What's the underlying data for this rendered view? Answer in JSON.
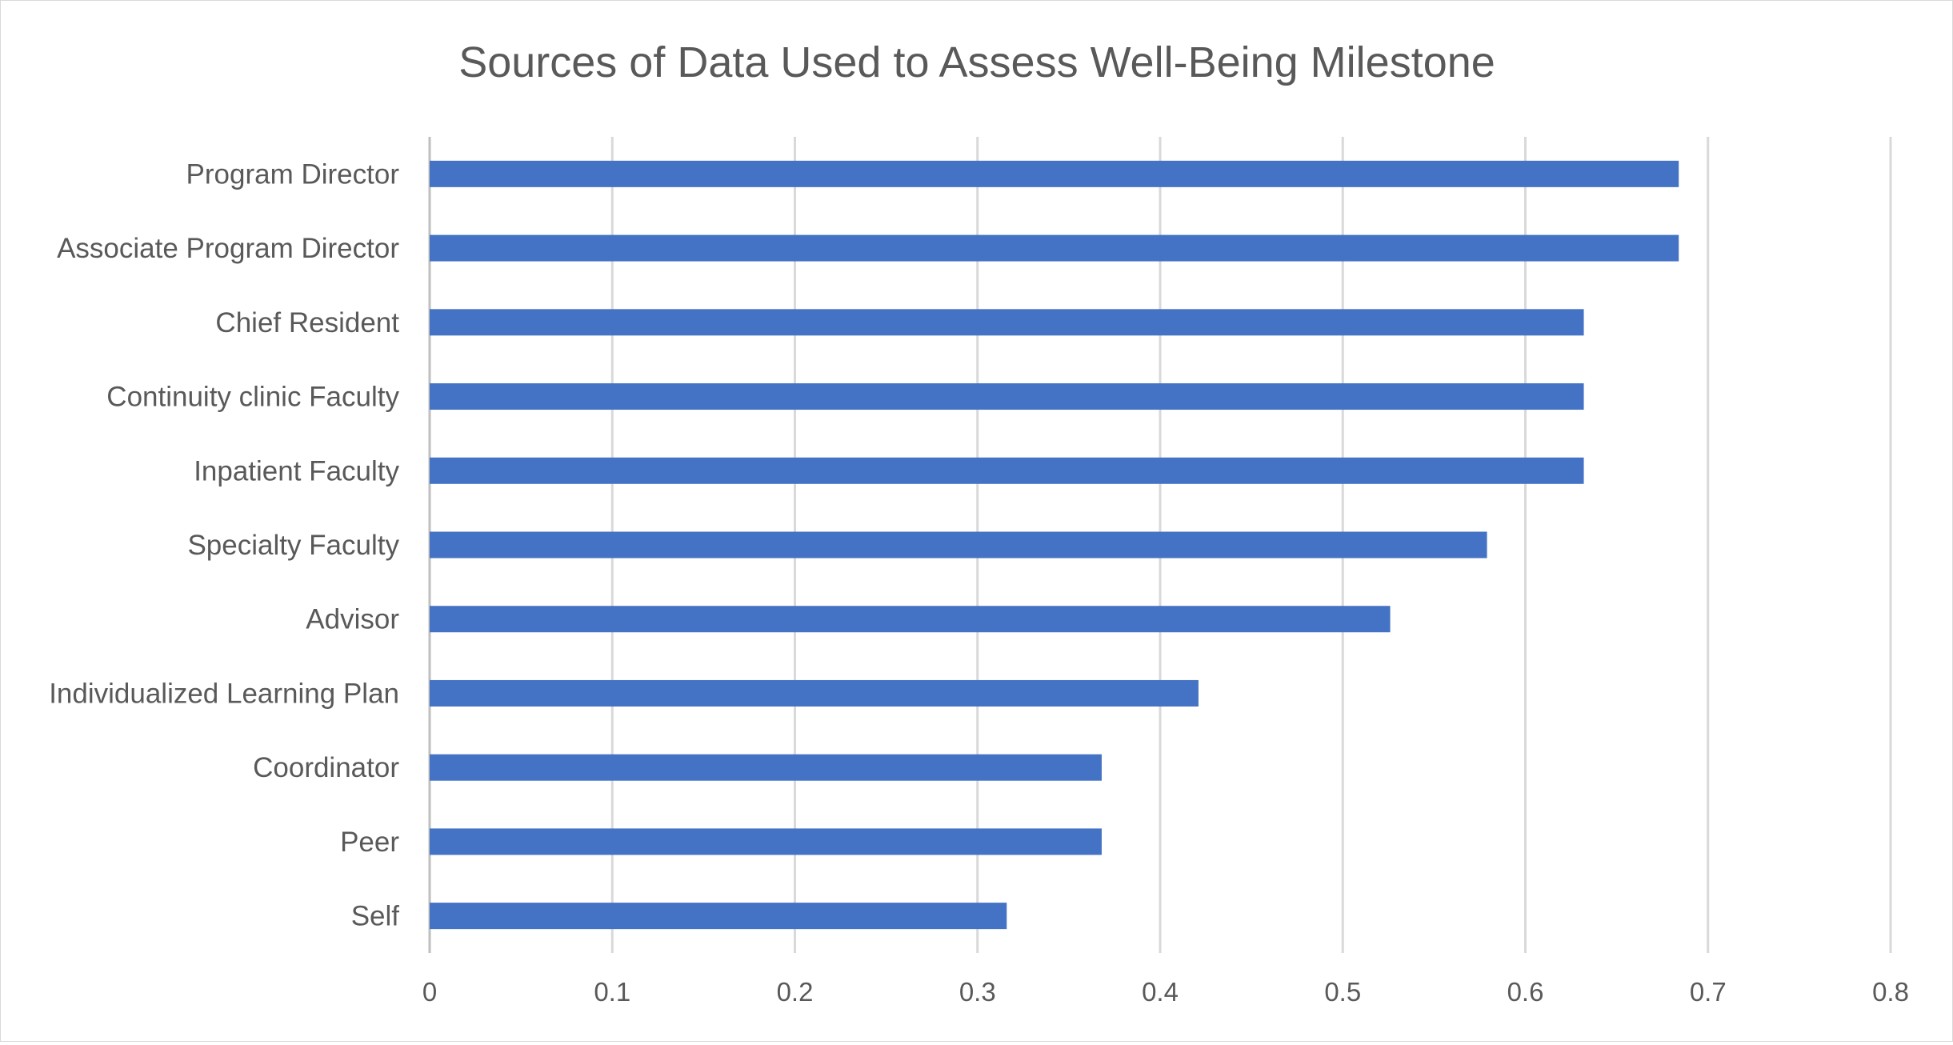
{
  "chart_data": {
    "type": "bar",
    "orientation": "horizontal",
    "title": "Sources of Data Used to Assess Well-Being Milestone",
    "xlabel": "",
    "ylabel": "",
    "xlim": [
      0,
      0.8
    ],
    "x_ticks": [
      "0",
      "0.1",
      "0.2",
      "0.3",
      "0.4",
      "0.5",
      "0.6",
      "0.7",
      "0.8"
    ],
    "grid": "vertical",
    "legend": "none",
    "bar_color": "#4472c4",
    "categories": [
      "Program Director",
      "Associate Program Director",
      "Chief Resident",
      "Continuity clinic Faculty",
      "Inpatient Faculty",
      "Specialty Faculty",
      "Advisor",
      "Individualized Learning Plan",
      "Coordinator",
      "Peer",
      "Self"
    ],
    "values": [
      0.684,
      0.684,
      0.632,
      0.632,
      0.632,
      0.579,
      0.526,
      0.421,
      0.368,
      0.368,
      0.316
    ]
  }
}
